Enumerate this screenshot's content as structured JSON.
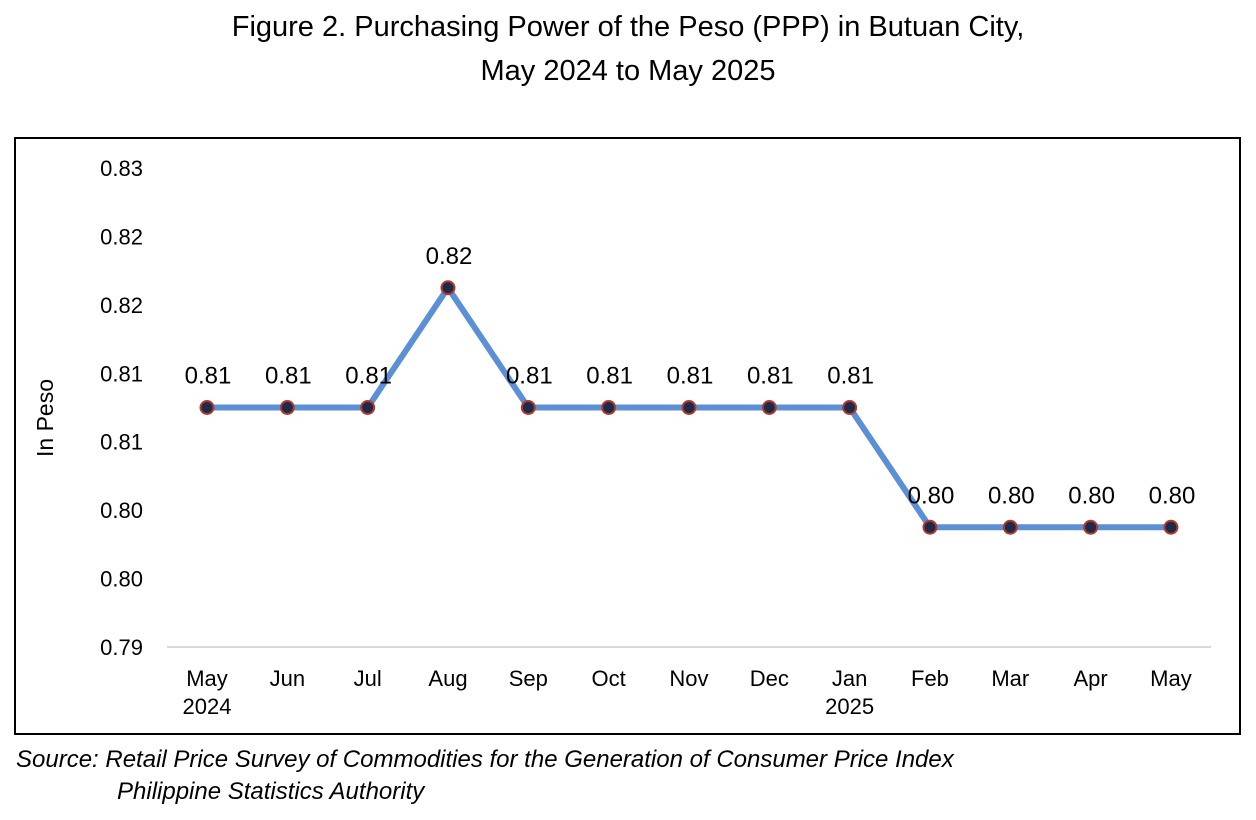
{
  "chart_data": {
    "type": "line",
    "title_line1": "Figure 2. Purchasing Power of the Peso (PPP) in Butuan City,",
    "title_line2": "May 2024 to May 2025",
    "xlabel": "",
    "ylabel": "In Peso",
    "categories": [
      {
        "label": "May",
        "year": "2024"
      },
      {
        "label": "Jun",
        "year": ""
      },
      {
        "label": "Jul",
        "year": ""
      },
      {
        "label": "Aug",
        "year": ""
      },
      {
        "label": "Sep",
        "year": ""
      },
      {
        "label": "Oct",
        "year": ""
      },
      {
        "label": "Nov",
        "year": ""
      },
      {
        "label": "Dec",
        "year": ""
      },
      {
        "label": "Jan",
        "year": "2025"
      },
      {
        "label": "Feb",
        "year": ""
      },
      {
        "label": "Mar",
        "year": ""
      },
      {
        "label": "Apr",
        "year": ""
      },
      {
        "label": "May",
        "year": ""
      }
    ],
    "series": [
      {
        "values": [
          0.81,
          0.81,
          0.81,
          0.82,
          0.81,
          0.81,
          0.81,
          0.81,
          0.81,
          0.8,
          0.8,
          0.8,
          0.8
        ],
        "data_labels": [
          "0.81",
          "0.81",
          "0.81",
          "0.82",
          "0.81",
          "0.81",
          "0.81",
          "0.81",
          "0.81",
          "0.80",
          "0.80",
          "0.80",
          "0.80"
        ],
        "line_color": "#5b8fd6",
        "marker_fill": "#1f2a48",
        "marker_edge": "#b23a2e"
      }
    ],
    "y_ticks": [
      "0.79",
      "0.80",
      "0.80",
      "0.81",
      "0.81",
      "0.82",
      "0.82",
      "0.83"
    ],
    "ylim": [
      0.79,
      0.83
    ],
    "grid": false,
    "legend": "none"
  },
  "source": {
    "line1": "Source: Retail Price Survey of Commodities for the Generation of Consumer Price Index",
    "line2": "Philippine Statistics Authority"
  }
}
